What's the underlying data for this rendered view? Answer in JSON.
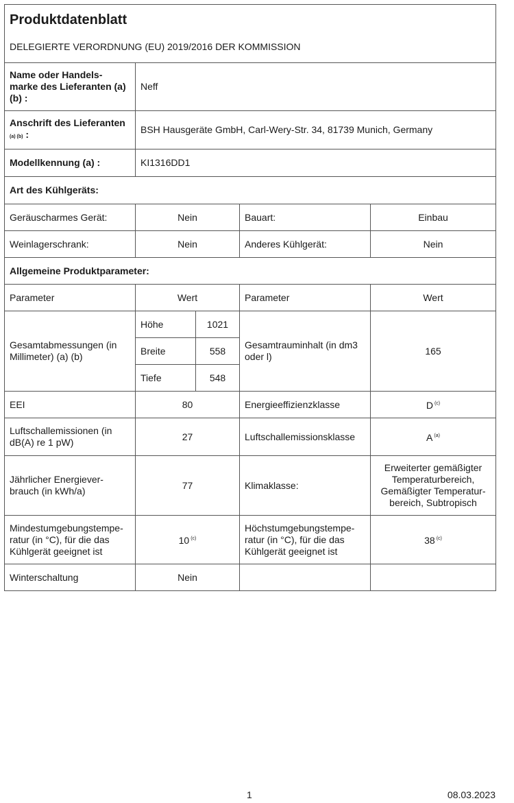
{
  "header": {
    "title": "Produktdatenblatt",
    "subtitle": "DELEGIERTE VERORDNUNG (EU) 2019/2016 DER KOMMISSION"
  },
  "supplier": {
    "name_label": "Name oder Handels-marke des Lieferanten (a) (b) :",
    "name_value": "Neff",
    "address_label": "Anschrift des Lieferanten",
    "address_label_note": "(a) (b)",
    "address_label_colon": ":",
    "address_value": "BSH Hausgeräte GmbH, Carl-Wery-Str. 34, 81739 Munich, Germany",
    "model_label": "Modellkennung (a) :",
    "model_value": "KI1316DD1"
  },
  "type_section": {
    "title": "Art des Kühlgeräts:",
    "rows": [
      [
        "Geräuscharmes Gerät:",
        "Nein",
        "Bauart:",
        "Einbau"
      ],
      [
        "Weinlagerschrank:",
        "Nein",
        "Anderes Kühlgerät:",
        "Nein"
      ]
    ]
  },
  "params": {
    "title": "Allgemeine Produktparameter:",
    "col_param": "Parameter",
    "col_value": "Wert",
    "dims_label": "Gesamtabmessungen (in Millimeter) (a) (b)",
    "dims": [
      [
        "Höhe",
        "1021"
      ],
      [
        "Breite",
        "558"
      ],
      [
        "Tiefe",
        "548"
      ]
    ],
    "volume_label": "Gesamtrauminhalt (in dm3 oder l)",
    "volume_value": "165",
    "eei_label": "EEI",
    "eei_value": "80",
    "energy_class_label": "Energieeffizienzklasse",
    "energy_class_value": "D",
    "energy_class_note": "(c)",
    "noise_label": "Luftschallemissionen (in dB(A) re 1 pW)",
    "noise_value": "27",
    "noise_class_label": "Luftschallemissionsklasse",
    "noise_class_value": "A",
    "noise_class_note": "(a)",
    "consumption_label": "Jährlicher Energiever-brauch (in kWh/a)",
    "consumption_value": "77",
    "climate_label": "Klimaklasse:",
    "climate_value": "Erweiterter gemäßigter Temperaturbereich, Gemäßigter Temperatur-bereich, Subtropisch",
    "min_temp_label": "Mindestumgebungstempe-ratur (in °C), für die das Kühlgerät geeignet ist",
    "min_temp_value": "10",
    "min_temp_note": "(c)",
    "max_temp_label": "Höchstumgebungstempe-ratur (in °C), für die das Kühlgerät geeignet ist",
    "max_temp_value": "38",
    "max_temp_note": "(c)",
    "winter_label": "Winterschaltung",
    "winter_value": "Nein"
  },
  "footer": {
    "page": "1",
    "date": "08.03.2023"
  }
}
